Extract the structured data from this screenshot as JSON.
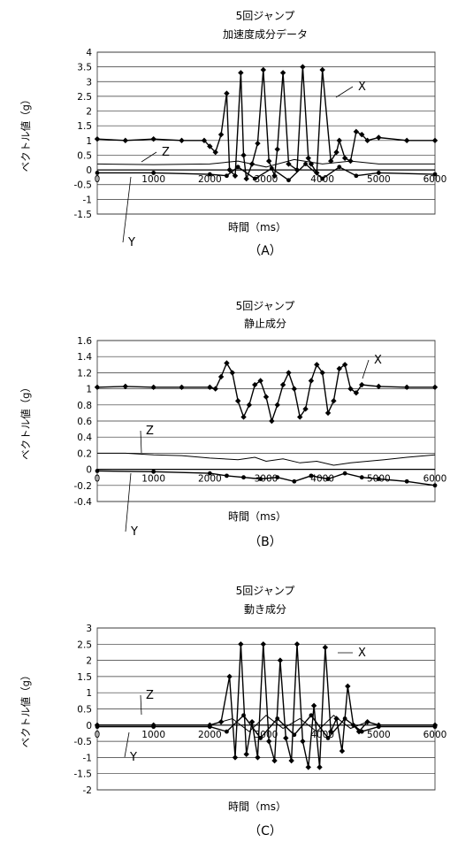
{
  "chart_data": [
    {
      "type": "line",
      "title_line1": "5回ジャンプ",
      "title_line2": "加速度成分データ",
      "xlabel": "時間（ms）",
      "ylabel": "ベクトル値（g）",
      "panel_label": "（A）",
      "xlim": [
        0,
        6000
      ],
      "ylim": [
        -1.5,
        4
      ],
      "xticks": [
        "0",
        "1000",
        "2000",
        "3000",
        "4000",
        "5000",
        "6000"
      ],
      "yticks": [
        "4",
        "3.5",
        "3",
        "2.5",
        "2",
        "1.5",
        "1",
        "0.5",
        "0",
        "-0.5",
        "-1",
        "-1.5"
      ],
      "grid": true,
      "series": [
        {
          "name": "X",
          "marker": "diamond",
          "x": [
            0,
            500,
            1000,
            1500,
            1900,
            2000,
            2100,
            2200,
            2300,
            2350,
            2450,
            2550,
            2600,
            2650,
            2750,
            2850,
            2950,
            3050,
            3150,
            3200,
            3300,
            3400,
            3550,
            3650,
            3750,
            3800,
            3900,
            4000,
            4150,
            4250,
            4300,
            4400,
            4500,
            4600,
            4700,
            4800,
            5000,
            5500,
            6000
          ],
          "y": [
            1.05,
            1.0,
            1.05,
            1.0,
            1.0,
            0.8,
            0.6,
            1.2,
            2.6,
            0.0,
            -0.2,
            3.3,
            0.5,
            -0.3,
            0.2,
            0.9,
            3.4,
            0.3,
            -0.2,
            0.7,
            3.3,
            0.2,
            0.0,
            3.5,
            0.4,
            0.2,
            -0.1,
            3.4,
            0.3,
            0.6,
            1.0,
            0.4,
            0.3,
            1.3,
            1.2,
            1.0,
            1.1,
            1.0,
            1.0
          ]
        },
        {
          "name": "Y",
          "marker": "dot",
          "x": [
            0,
            1000,
            2000,
            2300,
            2500,
            2800,
            3100,
            3400,
            3700,
            4000,
            4300,
            4600,
            5000,
            6000
          ],
          "y": [
            -0.1,
            -0.1,
            -0.15,
            -0.2,
            0.1,
            -0.3,
            0.05,
            -0.35,
            0.2,
            -0.3,
            0.1,
            -0.2,
            -0.1,
            -0.15
          ]
        },
        {
          "name": "Z",
          "marker": "none",
          "x": [
            0,
            1000,
            2000,
            2500,
            3000,
            3500,
            4000,
            4500,
            5000,
            6000
          ],
          "y": [
            0.2,
            0.18,
            0.2,
            0.3,
            0.1,
            0.35,
            0.2,
            0.3,
            0.2,
            0.2
          ]
        }
      ],
      "annotations": [
        "X",
        "Z",
        "Y"
      ]
    },
    {
      "type": "line",
      "title_line1": "5回ジャンプ",
      "title_line2": "静止成分",
      "xlabel": "時間（ms）",
      "ylabel": "ベクトル値（g）",
      "panel_label": "（B）",
      "xlim": [
        0,
        6000
      ],
      "ylim": [
        -0.4,
        1.6
      ],
      "xticks": [
        "0",
        "1000",
        "2000",
        "3000",
        "4000",
        "5000",
        "6000"
      ],
      "yticks": [
        "1.6",
        "1.4",
        "1.2",
        "1",
        "0.8",
        "0.6",
        "0.4",
        "0.2",
        "0",
        "-0.2",
        "-0.4"
      ],
      "grid": true,
      "series": [
        {
          "name": "X",
          "marker": "diamond",
          "x": [
            0,
            500,
            1000,
            1500,
            2000,
            2100,
            2200,
            2300,
            2400,
            2500,
            2600,
            2700,
            2800,
            2900,
            3000,
            3100,
            3200,
            3300,
            3400,
            3500,
            3600,
            3700,
            3800,
            3900,
            4000,
            4100,
            4200,
            4300,
            4400,
            4500,
            4600,
            4700,
            5000,
            5500,
            6000
          ],
          "y": [
            1.02,
            1.03,
            1.02,
            1.02,
            1.02,
            1.0,
            1.15,
            1.32,
            1.2,
            0.85,
            0.65,
            0.8,
            1.05,
            1.1,
            0.9,
            0.6,
            0.8,
            1.05,
            1.2,
            1.0,
            0.65,
            0.75,
            1.1,
            1.3,
            1.2,
            0.7,
            0.85,
            1.25,
            1.3,
            1.0,
            0.95,
            1.05,
            1.03,
            1.02,
            1.02
          ]
        },
        {
          "name": "Y",
          "marker": "dot",
          "x": [
            0,
            1000,
            2000,
            2300,
            2600,
            2900,
            3200,
            3500,
            3800,
            4100,
            4400,
            4700,
            5000,
            5500,
            6000
          ],
          "y": [
            -0.02,
            -0.03,
            -0.05,
            -0.08,
            -0.1,
            -0.12,
            -0.1,
            -0.15,
            -0.08,
            -0.12,
            -0.05,
            -0.1,
            -0.12,
            -0.15,
            -0.2
          ]
        },
        {
          "name": "Z",
          "marker": "none",
          "x": [
            0,
            500,
            1000,
            1500,
            2000,
            2500,
            2800,
            3000,
            3300,
            3600,
            3900,
            4200,
            4500,
            4800,
            5100,
            5500,
            6000
          ],
          "y": [
            0.2,
            0.2,
            0.18,
            0.17,
            0.14,
            0.12,
            0.15,
            0.1,
            0.13,
            0.08,
            0.1,
            0.05,
            0.08,
            0.1,
            0.12,
            0.15,
            0.18
          ]
        }
      ],
      "annotations": [
        "X",
        "Z",
        "Y"
      ]
    },
    {
      "type": "line",
      "title_line1": "5回ジャンプ",
      "title_line2": "動き成分",
      "xlabel": "時間（ms）",
      "ylabel": "ベクトル値（g）",
      "panel_label": "（C）",
      "xlim": [
        0,
        6000
      ],
      "ylim": [
        -2,
        3
      ],
      "xticks": [
        "0",
        "1000",
        "2000",
        "3000",
        "4000",
        "5000",
        "6000"
      ],
      "yticks": [
        "3",
        "2.5",
        "2",
        "1.5",
        "1",
        "0.5",
        "0",
        "-0.5",
        "-1",
        "-1.5",
        "-2"
      ],
      "grid": true,
      "series": [
        {
          "name": "X",
          "marker": "diamond",
          "x": [
            0,
            1000,
            2000,
            2200,
            2350,
            2450,
            2550,
            2650,
            2750,
            2850,
            2950,
            3050,
            3150,
            3250,
            3350,
            3450,
            3550,
            3650,
            3750,
            3850,
            3950,
            4050,
            4150,
            4250,
            4350,
            4450,
            4550,
            4650,
            4800,
            5000,
            6000
          ],
          "y": [
            0.0,
            0.0,
            0.0,
            0.1,
            1.5,
            -1.0,
            2.5,
            -0.9,
            0.1,
            -1.0,
            2.5,
            -0.5,
            -1.1,
            2.0,
            -0.4,
            -1.1,
            2.5,
            -0.5,
            -1.3,
            0.6,
            -1.3,
            2.4,
            -0.2,
            0.2,
            -0.8,
            1.2,
            0.0,
            -0.2,
            0.1,
            0.0,
            0.0
          ]
        },
        {
          "name": "Y",
          "marker": "dot",
          "x": [
            0,
            1000,
            2000,
            2300,
            2600,
            2900,
            3200,
            3500,
            3800,
            4100,
            4400,
            4700,
            5000,
            6000
          ],
          "y": [
            -0.05,
            -0.05,
            -0.05,
            -0.2,
            0.3,
            -0.4,
            0.2,
            -0.3,
            0.3,
            -0.4,
            0.2,
            -0.2,
            -0.05,
            -0.05
          ]
        },
        {
          "name": "Z",
          "marker": "none",
          "x": [
            0,
            1000,
            2000,
            2400,
            2700,
            3000,
            3300,
            3600,
            3900,
            4200,
            4500,
            4800,
            5000,
            6000
          ],
          "y": [
            0.0,
            0.0,
            0.0,
            0.2,
            -0.2,
            0.3,
            -0.1,
            0.2,
            -0.2,
            0.3,
            -0.1,
            0.1,
            0.0,
            0.0
          ]
        }
      ],
      "annotations": [
        "X",
        "Z",
        "Y"
      ]
    }
  ]
}
